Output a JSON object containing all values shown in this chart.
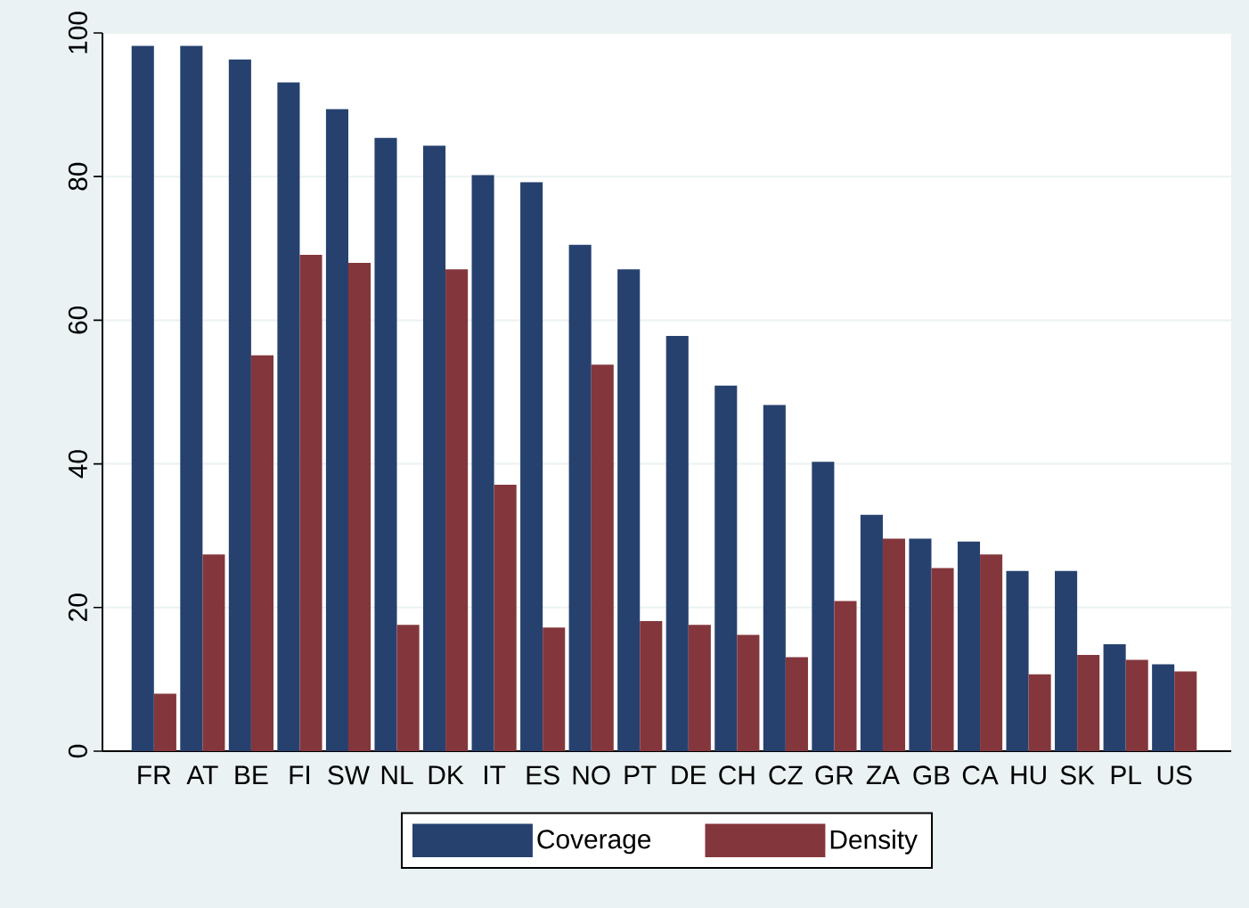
{
  "chart_data": {
    "type": "bar",
    "categories": [
      "FR",
      "AT",
      "BE",
      "FI",
      "SW",
      "NL",
      "DK",
      "IT",
      "ES",
      "NO",
      "PT",
      "DE",
      "CH",
      "CZ",
      "GR",
      "ZA",
      "GB",
      "CA",
      "HU",
      "SK",
      "PL",
      "US"
    ],
    "series": [
      {
        "name": "Coverage",
        "color": "#27416f",
        "values": [
          98.2,
          98.2,
          96.3,
          93.1,
          89.4,
          85.4,
          84.3,
          80.2,
          79.2,
          70.5,
          67.1,
          57.8,
          50.9,
          48.2,
          40.3,
          32.9,
          29.6,
          29.2,
          25.1,
          25.1,
          14.9,
          12.1
        ]
      },
      {
        "name": "Density",
        "color": "#83373c",
        "values": [
          8.0,
          27.4,
          55.1,
          69.1,
          68.0,
          17.6,
          67.1,
          37.1,
          17.2,
          53.8,
          18.1,
          17.6,
          16.2,
          13.1,
          20.9,
          29.6,
          25.5,
          27.4,
          10.7,
          13.4,
          12.7,
          11.1
        ]
      }
    ],
    "ylim": [
      0,
      100
    ],
    "yticks": [
      0,
      20,
      40,
      60,
      80,
      100
    ],
    "grid": "y",
    "legend": "bottom"
  }
}
